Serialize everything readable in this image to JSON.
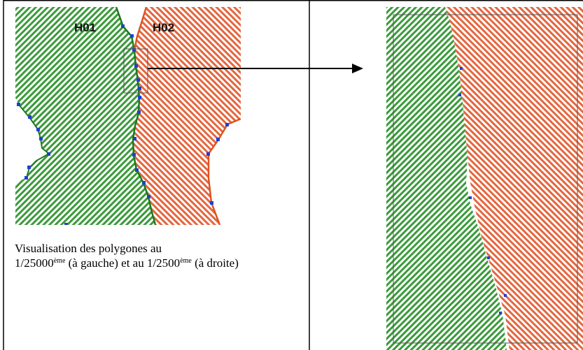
{
  "labels": {
    "left_polygon": "H01",
    "right_polygon": "H02"
  },
  "caption": {
    "line1": "Visualisation des polygones au",
    "scale_small": "1/25000",
    "scale_small_sup": "ème",
    "middle": " (à gauche) et au 1/2500",
    "scale_large_sup": "ème",
    "end": " (à droite)"
  },
  "colors": {
    "green_fill": "#3a9a3a",
    "orange_fill": "#e4663e",
    "vertex": "#1f3fd6",
    "green_edge": "#1d7a1d",
    "orange_edge": "#e0521f"
  }
}
